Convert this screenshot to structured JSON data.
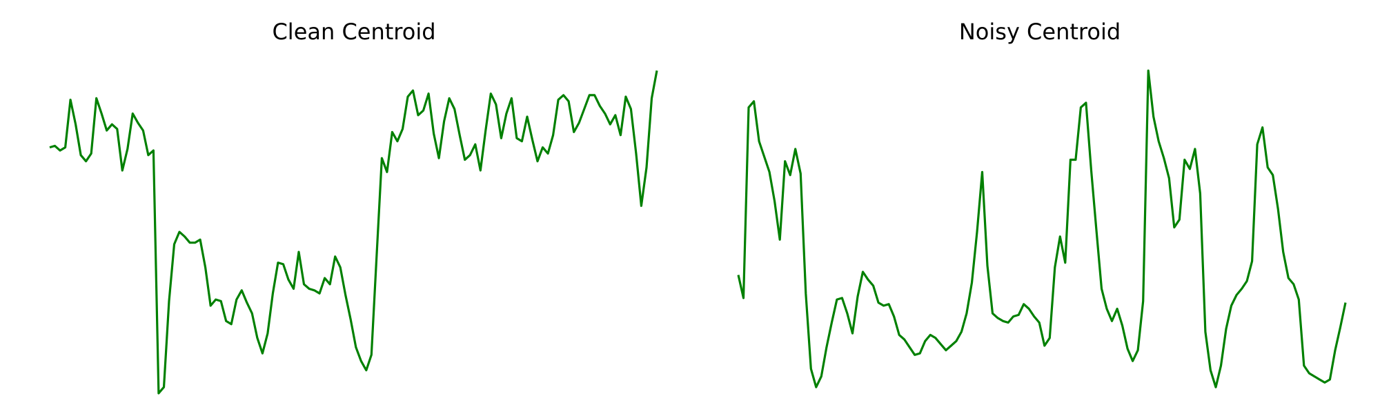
{
  "line_color": "#008000",
  "chart_data": [
    {
      "type": "line",
      "title": "Clean Centroid",
      "axes_visible": false,
      "grid": false,
      "ylim": [
        -0.05,
        1.05
      ],
      "x": [
        0,
        1,
        2,
        3,
        4,
        5,
        6,
        7,
        8,
        9,
        10,
        11,
        12,
        13,
        14,
        15,
        16,
        17,
        18,
        19,
        20,
        21,
        22,
        23,
        24,
        25,
        26,
        27,
        28,
        29,
        30,
        31,
        32,
        33,
        34,
        35,
        36,
        37,
        38,
        39,
        40,
        41,
        42,
        43,
        44,
        45,
        46,
        47,
        48,
        49,
        50,
        51,
        52,
        53,
        54,
        55,
        56,
        57,
        58,
        59,
        60,
        61,
        62,
        63,
        64,
        65,
        66,
        67,
        68,
        69,
        70,
        71,
        72,
        73,
        74,
        75,
        76,
        77,
        78,
        79,
        80,
        81,
        82,
        83,
        84,
        85,
        86,
        87,
        88,
        89,
        90,
        91,
        92,
        93,
        94,
        95,
        96,
        97,
        98,
        99,
        100,
        101,
        102,
        103,
        104,
        105,
        106,
        107,
        108,
        109,
        110,
        111,
        112,
        113,
        114,
        115,
        116,
        117
      ],
      "series": [
        {
          "values": [
            0.75,
            0.755,
            0.74,
            0.75,
            0.905,
            0.825,
            0.725,
            0.705,
            0.73,
            0.91,
            0.86,
            0.805,
            0.825,
            0.81,
            0.675,
            0.745,
            0.86,
            0.83,
            0.805,
            0.725,
            0.74,
            -0.05,
            -0.03,
            0.25,
            0.435,
            0.475,
            0.46,
            0.44,
            0.44,
            0.45,
            0.36,
            0.235,
            0.255,
            0.25,
            0.185,
            0.175,
            0.255,
            0.285,
            0.245,
            0.21,
            0.13,
            0.08,
            0.145,
            0.275,
            0.375,
            0.37,
            0.32,
            0.29,
            0.41,
            0.305,
            0.29,
            0.285,
            0.275,
            0.325,
            0.305,
            0.395,
            0.36,
            0.27,
            0.19,
            0.1,
            0.055,
            0.025,
            0.075,
            0.395,
            0.715,
            0.67,
            0.8,
            0.77,
            0.81,
            0.915,
            0.935,
            0.855,
            0.87,
            0.925,
            0.795,
            0.715,
            0.835,
            0.91,
            0.875,
            0.79,
            0.71,
            0.725,
            0.76,
            0.675,
            0.805,
            0.925,
            0.89,
            0.78,
            0.86,
            0.91,
            0.78,
            0.77,
            0.85,
            0.775,
            0.705,
            0.75,
            0.73,
            0.79,
            0.905,
            0.92,
            0.9,
            0.8,
            0.83,
            0.875,
            0.92,
            0.92,
            0.885,
            0.86,
            0.825,
            0.855,
            0.79,
            0.915,
            0.875,
            0.73,
            0.56,
            0.685,
            0.91,
            1.0
          ]
        }
      ]
    },
    {
      "type": "line",
      "title": "Noisy Centroid",
      "axes_visible": false,
      "grid": false,
      "ylim": [
        -0.05,
        1.05
      ],
      "x": [
        0,
        1,
        2,
        3,
        4,
        5,
        6,
        7,
        8,
        9,
        10,
        11,
        12,
        13,
        14,
        15,
        16,
        17,
        18,
        19,
        20,
        21,
        22,
        23,
        24,
        25,
        26,
        27,
        28,
        29,
        30,
        31,
        32,
        33,
        34,
        35,
        36,
        37,
        38,
        39,
        40,
        41,
        42,
        43,
        44,
        45,
        46,
        47,
        48,
        49,
        50,
        51,
        52,
        53,
        54,
        55,
        56,
        57,
        58,
        59,
        60,
        61,
        62,
        63,
        64,
        65,
        66,
        67,
        68,
        69,
        70,
        71,
        72,
        73,
        74,
        75,
        76,
        77,
        78,
        79,
        80,
        81,
        82,
        83,
        84,
        85,
        86,
        87,
        88,
        89,
        90,
        91,
        92,
        93,
        94,
        95,
        96,
        97,
        98,
        99,
        100,
        101,
        102,
        103,
        104,
        105,
        106,
        107,
        108,
        109,
        110,
        111,
        112,
        113,
        114,
        115,
        116,
        117
      ],
      "series": [
        {
          "values": [
            0.335,
            0.26,
            0.88,
            0.9,
            0.77,
            0.72,
            0.67,
            0.575,
            0.45,
            0.705,
            0.66,
            0.745,
            0.665,
            0.275,
            0.03,
            -0.03,
            0.005,
            0.1,
            0.18,
            0.255,
            0.26,
            0.21,
            0.145,
            0.265,
            0.345,
            0.32,
            0.3,
            0.245,
            0.235,
            0.24,
            0.2,
            0.14,
            0.125,
            0.1,
            0.075,
            0.08,
            0.12,
            0.14,
            0.13,
            0.11,
            0.09,
            0.105,
            0.12,
            0.15,
            0.21,
            0.31,
            0.475,
            0.67,
            0.365,
            0.21,
            0.195,
            0.185,
            0.18,
            0.2,
            0.205,
            0.24,
            0.225,
            0.2,
            0.18,
            0.105,
            0.13,
            0.36,
            0.46,
            0.375,
            0.71,
            0.71,
            0.88,
            0.895,
            0.675,
            0.48,
            0.29,
            0.225,
            0.185,
            0.225,
            0.17,
            0.095,
            0.055,
            0.09,
            0.25,
            1.0,
            0.85,
            0.77,
            0.715,
            0.65,
            0.49,
            0.515,
            0.71,
            0.68,
            0.745,
            0.6,
            0.15,
            0.025,
            -0.03,
            0.04,
            0.16,
            0.235,
            0.27,
            0.29,
            0.315,
            0.38,
            0.76,
            0.815,
            0.685,
            0.66,
            0.55,
            0.41,
            0.325,
            0.305,
            0.255,
            0.04,
            0.015,
            0.005,
            -0.005,
            -0.015,
            -0.005,
            0.09,
            0.165,
            0.245
          ]
        }
      ]
    }
  ]
}
